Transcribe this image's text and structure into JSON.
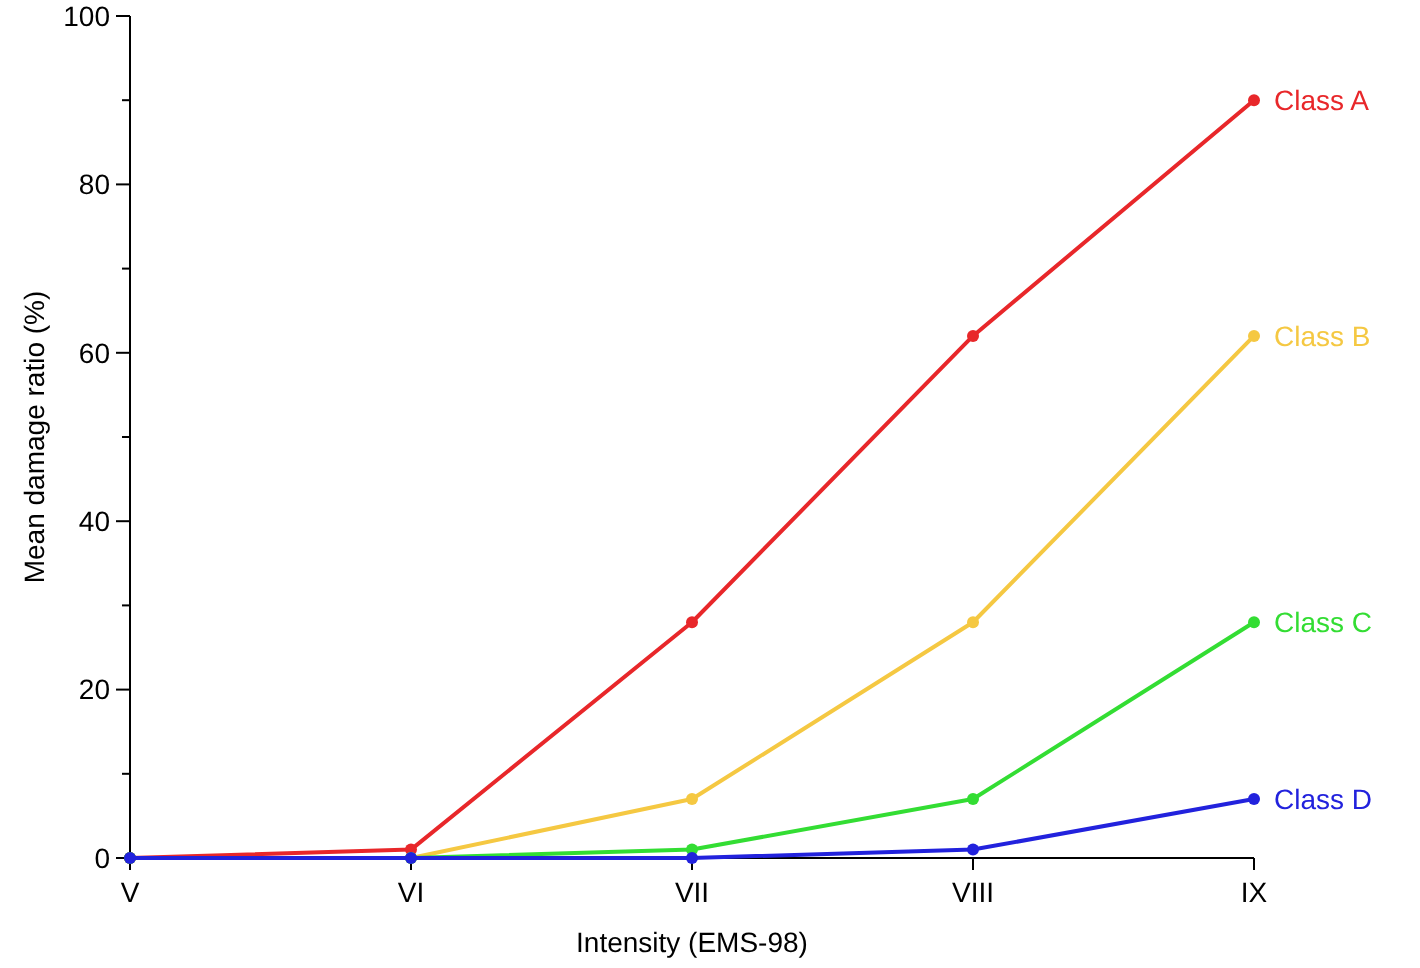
{
  "chart_data": {
    "type": "line",
    "xlabel": "Intensity (EMS-98)",
    "ylabel": "Mean damage ratio (%)",
    "categories": [
      "V",
      "VI",
      "VII",
      "VIII",
      "IX"
    ],
    "series": [
      {
        "name": "Class A",
        "color": "#e8272a",
        "values": [
          0,
          1,
          28,
          62,
          90
        ]
      },
      {
        "name": "Class B",
        "color": "#f5c842",
        "values": [
          0,
          0,
          7,
          28,
          62
        ]
      },
      {
        "name": "Class C",
        "color": "#33dd33",
        "values": [
          0,
          0,
          1,
          7,
          28
        ]
      },
      {
        "name": "Class D",
        "color": "#2222dd",
        "values": [
          0,
          0,
          0,
          1,
          7
        ]
      }
    ],
    "ylim": [
      0,
      100
    ],
    "yticks": [
      0,
      {
        "value": 10,
        "label": null
      },
      20,
      {
        "value": 30,
        "label": null
      },
      40,
      {
        "value": 50,
        "label": null
      },
      60,
      {
        "value": 70,
        "label": null
      },
      80,
      {
        "value": 90,
        "label": null
      },
      100
    ],
    "grid": false,
    "legend": "right",
    "marker": "circle",
    "line_style": "solid"
  }
}
